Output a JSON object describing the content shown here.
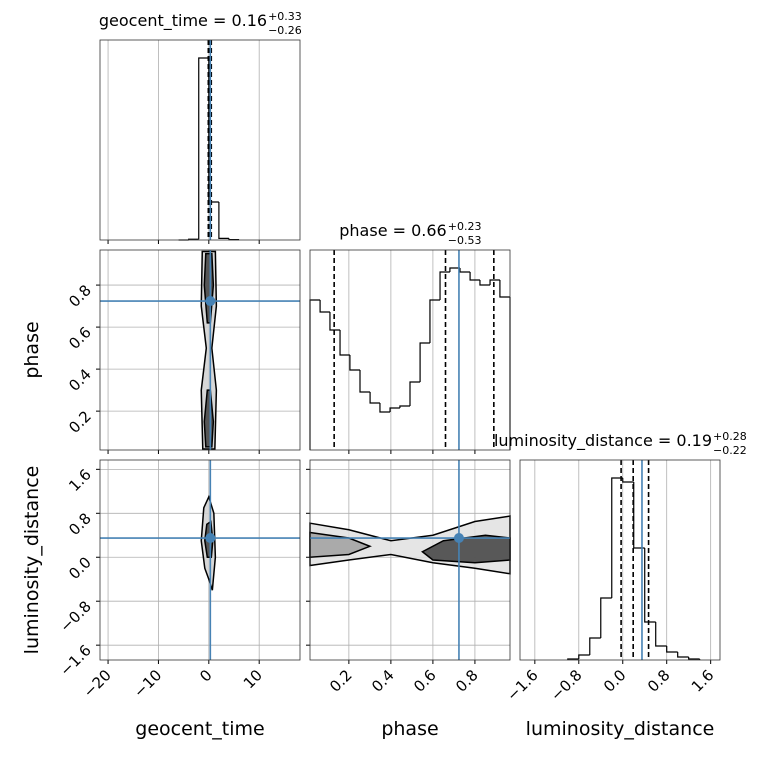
{
  "chart_data": {
    "type": "corner",
    "line_color": "#000000",
    "truth_color": "#4682b4",
    "grid": true,
    "parameters": [
      {
        "label": "geocent_time",
        "title": "geocent_time = 0.16",
        "title_sup": "+0.33",
        "title_sub": "−0.26",
        "lim": [
          -21.6,
          18.1
        ],
        "ticks": [
          {
            "value": -20,
            "label": "−20"
          },
          {
            "value": -10,
            "label": "−10"
          },
          0,
          10
        ],
        "truth": 0.3,
        "quantiles": [
          -0.1,
          0.16,
          0.49
        ],
        "bins": [
          -6,
          -4,
          -2,
          0,
          2,
          4,
          6
        ],
        "counts": [
          0,
          4,
          910,
          190,
          8,
          2
        ],
        "ylim": [
          0,
          1000
        ]
      },
      {
        "label": "phase",
        "title": "phase = 0.66",
        "title_sup": "+0.23",
        "title_sub": "−0.53",
        "lim": [
          0.015,
          0.967
        ],
        "ticks": [
          0.2,
          0.4,
          0.6,
          0.8
        ],
        "truth": 0.724,
        "quantiles": [
          0.13,
          0.66,
          0.89
        ],
        "bins": [
          0.015,
          0.063,
          0.11,
          0.158,
          0.205,
          0.253,
          0.301,
          0.348,
          0.396,
          0.443,
          0.491,
          0.539,
          0.586,
          0.634,
          0.681,
          0.729,
          0.777,
          0.824,
          0.872,
          0.919,
          0.967
        ],
        "counts": [
          75,
          69,
          60,
          47.5,
          40,
          29,
          23.5,
          19,
          21,
          22,
          34,
          53.5,
          75,
          89,
          91,
          89,
          85,
          82.5,
          85,
          76.5
        ],
        "ylim": [
          0,
          100
        ]
      },
      {
        "label": "luminosity_distance",
        "title": "luminosity_distance = 0.19",
        "title_sup": "+0.28",
        "title_sub": "−0.22",
        "lim": [
          -1.87,
          1.77
        ],
        "ticks": [
          {
            "value": -1.6,
            "label": "−1.6"
          },
          {
            "value": -0.8,
            "label": "−0.8"
          },
          {
            "value": 0,
            "label": "0.0"
          },
          0.8,
          1.6
        ],
        "truth": 0.35,
        "quantiles": [
          -0.03,
          0.19,
          0.47
        ],
        "bins": [
          -1.0,
          -0.8,
          -0.6,
          -0.4,
          -0.2,
          0,
          0.2,
          0.4,
          0.6,
          0.8,
          1.0,
          1.2,
          1.4
        ],
        "counts": [
          0.5,
          2.5,
          11,
          31,
          91,
          89,
          56,
          19,
          7,
          4,
          1.5,
          0.5
        ],
        "ylim": [
          0,
          100
        ]
      }
    ],
    "pairs": [
      [
        {
          "contours": [
            {
              "color": "#d0d0d0",
              "x": [
                -1.2,
                -1.5,
                -0.5,
                -1.5,
                -1.3,
                1.3,
                1.5,
                0.6,
                1.5,
                1.2
              ],
              "y": [
                0.02,
                0.3,
                0.5,
                0.7,
                0.96,
                0.96,
                0.7,
                0.5,
                0.3,
                0.02
              ]
            },
            {
              "color": "#404040",
              "x": [
                -0.6,
                -0.9,
                -0.3,
                0.3,
                0.9,
                0.6
              ],
              "y": [
                0.95,
                0.8,
                0.62,
                0.62,
                0.8,
                0.95
              ]
            },
            {
              "color": "#404040",
              "x": [
                -0.6,
                -0.9,
                -0.3,
                0.3,
                0.9,
                0.6
              ],
              "y": [
                0.03,
                0.15,
                0.3,
                0.3,
                0.15,
                0.03
              ]
            }
          ]
        }
      ],
      [
        {
          "contours": [
            {
              "color": "#d0d0d0",
              "x": [
                -1.5,
                -1,
                0,
                1,
                1.3,
                0.7,
                0,
                -0.8
              ],
              "y": [
                0.3,
                0.9,
                1.1,
                0.8,
                0,
                -0.6,
                -0.4,
                -0.2
              ]
            },
            {
              "color": "#404040",
              "x": [
                -0.8,
                -0.4,
                0.4,
                0.8,
                0.5,
                -0.3
              ],
              "y": [
                0.3,
                0.6,
                0.65,
                0.3,
                0,
                0
              ]
            }
          ]
        },
        {
          "contours": [
            {
              "color": "#e0e0e0",
              "x": [
                0.015,
                0.2,
                0.4,
                0.6,
                0.8,
                0.967,
                0.967,
                0.8,
                0.6,
                0.4,
                0.2,
                0.015
              ],
              "y": [
                0.62,
                0.5,
                0.3,
                0.4,
                0.65,
                0.75,
                -0.3,
                -0.2,
                -0.1,
                0.05,
                -0.05,
                -0.15
              ]
            },
            {
              "color": "#404040",
              "x": [
                0.55,
                0.65,
                0.85,
                0.967,
                0.967,
                0.8,
                0.6
              ],
              "y": [
                0.1,
                0.3,
                0.4,
                0.35,
                -0.05,
                -0.1,
                -0.05
              ]
            },
            {
              "color": "#a0a0a0",
              "x": [
                0.015,
                0.2,
                0.3,
                0.2,
                0.015
              ],
              "y": [
                0.45,
                0.35,
                0.2,
                0.05,
                0
              ]
            }
          ]
        }
      ]
    ]
  }
}
